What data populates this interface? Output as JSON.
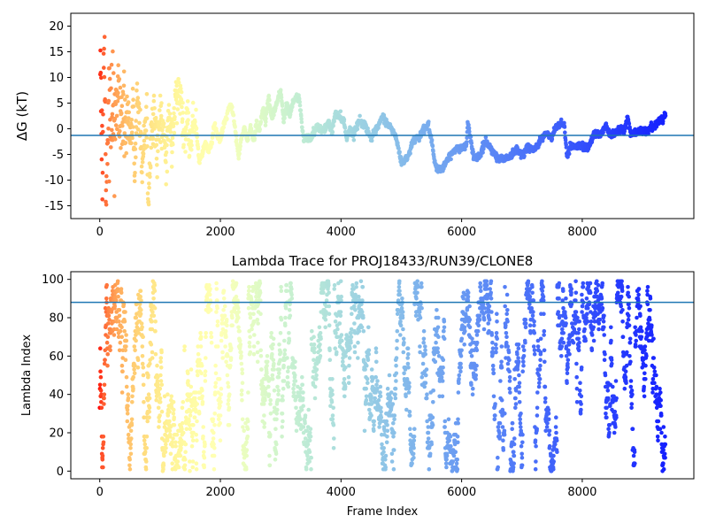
{
  "chart_data": [
    {
      "type": "scatter",
      "title": "",
      "xlabel": "",
      "ylabel": "ΔG (kT)",
      "xlim": [
        -480,
        9850
      ],
      "ylim": [
        -17.5,
        22.5
      ],
      "xticks": [
        0,
        2000,
        4000,
        6000,
        8000
      ],
      "yticks": [
        -15,
        -10,
        -5,
        0,
        5,
        10,
        15,
        20
      ],
      "colormap": "rainbow (frame index, red = early, violet = late)",
      "reference_line": {
        "y": -1.3,
        "color": "#1f77b4"
      },
      "trace_points": [
        [
          0,
          20.3
        ],
        [
          50,
          -12
        ],
        [
          60,
          16
        ],
        [
          80,
          13
        ],
        [
          100,
          -9
        ],
        [
          120,
          -15
        ],
        [
          150,
          11
        ],
        [
          180,
          0
        ],
        [
          200,
          6.2
        ],
        [
          250,
          2
        ],
        [
          300,
          8.2
        ],
        [
          350,
          1
        ],
        [
          400,
          4.1
        ],
        [
          430,
          -2.8
        ],
        [
          460,
          6.5
        ],
        [
          500,
          -4.1
        ],
        [
          540,
          3.2
        ],
        [
          580,
          -6.3
        ],
        [
          620,
          5.7
        ],
        [
          660,
          0.8
        ],
        [
          700,
          -8.8
        ],
        [
          740,
          -2.5
        ],
        [
          780,
          3.8
        ],
        [
          800,
          -15.2
        ],
        [
          850,
          -2
        ],
        [
          900,
          3.8
        ],
        [
          950,
          -4.2
        ],
        [
          1000,
          3.2
        ],
        [
          1050,
          -0.2
        ],
        [
          1100,
          -6.1
        ],
        [
          1150,
          2.6
        ],
        [
          1200,
          -2.5
        ],
        [
          1250,
          5.3
        ],
        [
          1300,
          8.2
        ],
        [
          1350,
          5.4
        ],
        [
          1400,
          -1.3
        ],
        [
          1450,
          2.1
        ],
        [
          1500,
          -3.2
        ],
        [
          1550,
          1.8
        ],
        [
          1600,
          -0.1
        ],
        [
          1650,
          -6.4
        ],
        [
          1700,
          -4.8
        ],
        [
          1750,
          -2.4
        ],
        [
          1800,
          -4.5
        ],
        [
          1850,
          -3.1
        ],
        [
          1900,
          1.1
        ],
        [
          1950,
          -1.2
        ],
        [
          2000,
          -2.2
        ],
        [
          2050,
          0.6
        ],
        [
          2100,
          2.2
        ],
        [
          2150,
          4.4
        ],
        [
          2200,
          3.8
        ],
        [
          2250,
          -0.5
        ],
        [
          2300,
          -5.5
        ],
        [
          2350,
          -1.8
        ],
        [
          2400,
          0.1
        ],
        [
          2450,
          -2.2
        ],
        [
          2500,
          0.1
        ],
        [
          2550,
          -2.4
        ],
        [
          2600,
          1.2
        ],
        [
          2650,
          -0.5
        ],
        [
          2700,
          4.2
        ],
        [
          2750,
          1.3
        ],
        [
          2800,
          6.4
        ],
        [
          2850,
          2.1
        ],
        [
          2900,
          3.6
        ],
        [
          2950,
          5.8
        ],
        [
          3000,
          7.5
        ],
        [
          3050,
          1.4
        ],
        [
          3100,
          4.8
        ],
        [
          3150,
          2.6
        ],
        [
          3200,
          5.2
        ],
        [
          3300,
          6.5
        ],
        [
          3380,
          -1.9
        ],
        [
          3500,
          -1.7
        ],
        [
          3600,
          0.2
        ],
        [
          3700,
          -0.4
        ],
        [
          3800,
          1.2
        ],
        [
          3850,
          -0.8
        ],
        [
          3900,
          2.9
        ],
        [
          4000,
          2.3
        ],
        [
          4050,
          1.4
        ],
        [
          4100,
          -2.1
        ],
        [
          4150,
          0.3
        ],
        [
          4200,
          -1.2
        ],
        [
          4300,
          1.6
        ],
        [
          4400,
          0.7
        ],
        [
          4500,
          -1.9
        ],
        [
          4600,
          0.1
        ],
        [
          4700,
          2.5
        ],
        [
          4750,
          1.2
        ],
        [
          4800,
          0.6
        ],
        [
          4900,
          -1.2
        ],
        [
          5000,
          -6.5
        ],
        [
          5100,
          -5.8
        ],
        [
          5200,
          -2.2
        ],
        [
          5300,
          -1.5
        ],
        [
          5400,
          0.3
        ],
        [
          5450,
          0.7
        ],
        [
          5500,
          -2.4
        ],
        [
          5550,
          -6.5
        ],
        [
          5600,
          -8.2
        ],
        [
          5700,
          -7.4
        ],
        [
          5800,
          -5.4
        ],
        [
          5900,
          -3.9
        ],
        [
          6000,
          -3.6
        ],
        [
          6080,
          -3.3
        ],
        [
          6100,
          1.2
        ],
        [
          6150,
          -2.2
        ],
        [
          6200,
          -5.5
        ],
        [
          6300,
          -5.4
        ],
        [
          6400,
          -2.3
        ],
        [
          6500,
          -4.1
        ],
        [
          6600,
          -5.8
        ],
        [
          6700,
          -5.7
        ],
        [
          6800,
          -5.4
        ],
        [
          6900,
          -4.1
        ],
        [
          7000,
          -4.9
        ],
        [
          7100,
          -3.5
        ],
        [
          7200,
          -4.2
        ],
        [
          7300,
          -2.3
        ],
        [
          7400,
          -0.9
        ],
        [
          7500,
          -1.8
        ],
        [
          7550,
          0.2
        ],
        [
          7650,
          1.1
        ],
        [
          7700,
          0.9
        ],
        [
          7750,
          -5.6
        ],
        [
          7800,
          -3.3
        ],
        [
          7900,
          -3.5
        ],
        [
          8000,
          -3.2
        ],
        [
          8100,
          -3.8
        ],
        [
          8200,
          -0.8
        ],
        [
          8300,
          -1.2
        ],
        [
          8400,
          0.9
        ],
        [
          8450,
          -1.1
        ],
        [
          8500,
          -0.9
        ],
        [
          8600,
          -0.1
        ],
        [
          8700,
          -0.4
        ],
        [
          8750,
          2.3
        ],
        [
          8800,
          -0.8
        ],
        [
          8900,
          -0.4
        ],
        [
          9000,
          -0.5
        ],
        [
          9100,
          -0.3
        ],
        [
          9200,
          0.6
        ],
        [
          9300,
          2
        ],
        [
          9380,
          2.4
        ]
      ],
      "scatter_spread": [
        [
          0,
          4,
          12
        ],
        [
          200,
          4,
          10
        ],
        [
          400,
          3,
          7
        ],
        [
          600,
          2.5,
          5
        ],
        [
          800,
          2.5,
          4
        ],
        [
          1200,
          1.8,
          2.5
        ],
        [
          2000,
          1.3,
          1.5
        ],
        [
          3400,
          0.9,
          1
        ],
        [
          5000,
          0.7,
          0.8
        ],
        [
          9400,
          0.6,
          0.7
        ]
      ]
    },
    {
      "type": "scatter",
      "title": "Lambda Trace for PROJ18433/RUN39/CLONE8",
      "xlabel": "Frame Index",
      "ylabel": "Lambda Index",
      "xlim": [
        -480,
        9850
      ],
      "ylim": [
        -4,
        104
      ],
      "xticks": [
        0,
        2000,
        4000,
        6000,
        8000
      ],
      "yticks": [
        0,
        20,
        40,
        60,
        80,
        100
      ],
      "colormap": "rainbow (frame index, red = early, violet = late)",
      "reference_line": {
        "y": 88,
        "color": "#1f77b4"
      },
      "x_range": [
        0,
        9380
      ],
      "y_range": [
        0,
        99
      ],
      "approx_point_count": 9400
    }
  ]
}
